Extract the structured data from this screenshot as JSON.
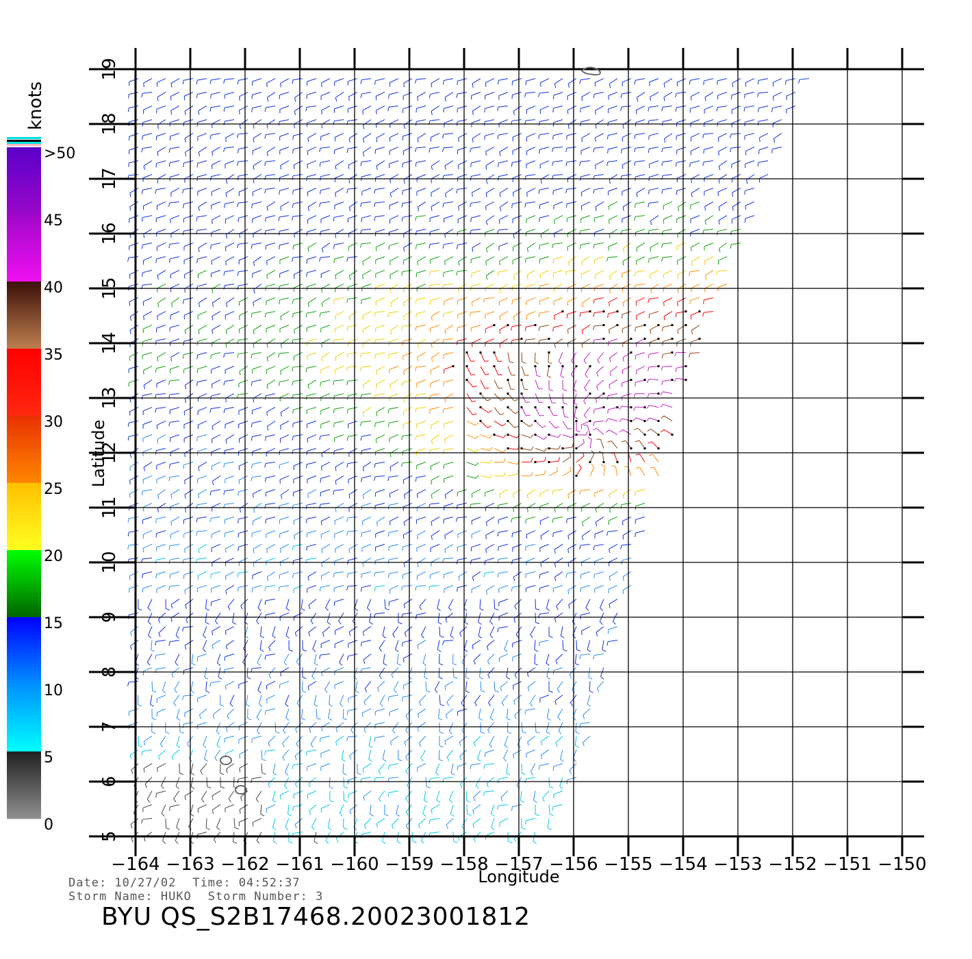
{
  "map": {
    "lon_ticks": [
      -164,
      -163,
      -162,
      -161,
      -160,
      -159,
      -158,
      -157,
      -156,
      -155,
      -154,
      -153,
      -152,
      -151,
      -150
    ],
    "lat_ticks": [
      5,
      6,
      7,
      8,
      9,
      10,
      11,
      12,
      13,
      14,
      15,
      16,
      17,
      18,
      19
    ],
    "lon_range": [
      -164,
      -150
    ],
    "lat_range": [
      5,
      19
    ],
    "xlabel": "Longitude",
    "ylabel": "Latitude",
    "grid": true,
    "swath_edge": [
      [
        -151.6,
        19.0
      ],
      [
        -154.0,
        13.0
      ],
      [
        -155.9,
        6.0
      ],
      [
        -156.5,
        5.0
      ]
    ]
  },
  "colorbar": {
    "unit": "knots",
    "labels": [
      ">50",
      "45",
      "40",
      "35",
      "30",
      "25",
      "20",
      "15",
      "10",
      "5",
      "0"
    ],
    "segments": [
      {
        "from": 50,
        "to": 45,
        "top": "#5a00c8",
        "bottom": "#9a08c8"
      },
      {
        "from": 45,
        "to": 40,
        "top": "#a008c8",
        "bottom": "#f010f0"
      },
      {
        "from": 40,
        "to": 35,
        "top": "#3a1008",
        "bottom": "#c08050"
      },
      {
        "from": 35,
        "to": 30,
        "top": "#ff0000",
        "bottom": "#ff2810"
      },
      {
        "from": 30,
        "to": 25,
        "top": "#e83000",
        "bottom": "#ff8800"
      },
      {
        "from": 25,
        "to": 20,
        "top": "#ffc000",
        "bottom": "#ffff20"
      },
      {
        "from": 20,
        "to": 15,
        "top": "#00ff00",
        "bottom": "#006400"
      },
      {
        "from": 15,
        "to": 10,
        "top": "#0000ff",
        "bottom": "#0090ff"
      },
      {
        "from": 10,
        "to": 5,
        "top": "#0090ff",
        "bottom": "#00ffff"
      },
      {
        "from": 5,
        "to": 0,
        "top": "#202020",
        "bottom": "#909090"
      }
    ]
  },
  "wind_colors": {
    "calm": "#444444",
    "cyan": "#00c8e8",
    "lightblue": "#2a8cf0",
    "blue": "#1030e0",
    "green": "#10a010",
    "yellow": "#f0d000",
    "orange": "#ff8c00",
    "red": "#ff0000",
    "brown": "#8b4513",
    "magenta": "#c020c0",
    "flag": "#000000"
  },
  "info": {
    "date_label": "Date:",
    "date": "10/27/02",
    "time_label": "Time:",
    "time": "04:52:37",
    "storm_name_label": "Storm Name:",
    "storm_name": "HUKO",
    "storm_number_label": "Storm Number:",
    "storm_number": "3",
    "title": "BYU QS_S2B17468.20023001812"
  }
}
